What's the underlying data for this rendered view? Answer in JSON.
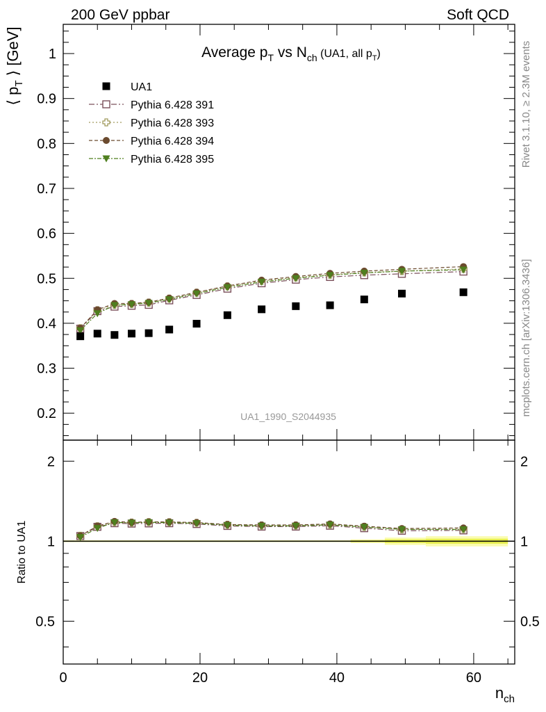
{
  "header": {
    "left": "200 GeV ppbar",
    "right": "Soft QCD"
  },
  "side_text": {
    "rivet": "Rivet 3.1.10, ≥ 2.3M events",
    "mcplots": "mcplots.cern.ch [arXiv:1306.3436]"
  },
  "analysis_id": "UA1_1990_S2044935",
  "chart_data": {
    "type": "scatter",
    "title": "Average pT vs Nch (UA1, all pT)",
    "xlabel": "nch",
    "ylabel": "⟨ pT ⟩ [GeV]",
    "ratio_ylabel": "Ratio to UA1",
    "xlim": [
      0,
      66
    ],
    "ylim": [
      0.14,
      1.065
    ],
    "ratio_ylim": [
      0.345,
      2.4
    ],
    "ratio_log": true,
    "x_ticks": [
      0,
      20,
      40,
      60
    ],
    "y_ticks": [
      0.2,
      0.3,
      0.4,
      0.5,
      0.6,
      0.7,
      0.8,
      0.9,
      1
    ],
    "ratio_ticks": [
      0.5,
      1,
      2
    ],
    "legend_position": "top-left",
    "x": [
      2.5,
      5,
      7.5,
      10,
      12.5,
      15.5,
      19.5,
      24,
      29,
      34,
      39,
      44,
      49.5,
      58.5
    ],
    "data": {
      "name": "UA1",
      "values": [
        0.371,
        0.377,
        0.374,
        0.377,
        0.378,
        0.386,
        0.399,
        0.418,
        0.431,
        0.438,
        0.44,
        0.453,
        0.466,
        0.469
      ]
    },
    "series": [
      {
        "name": "Pythia 6.428 391",
        "color": "#7a4f5a",
        "marker": "open-square",
        "dash": "8,3,2,3",
        "values": [
          0.388,
          0.427,
          0.437,
          0.439,
          0.441,
          0.451,
          0.463,
          0.477,
          0.489,
          0.497,
          0.503,
          0.507,
          0.51,
          0.515
        ]
      },
      {
        "name": "Pythia 6.428 393",
        "color": "#a09a5c",
        "marker": "open-cross",
        "dash": "2,3",
        "values": [
          0.389,
          0.429,
          0.441,
          0.443,
          0.446,
          0.455,
          0.468,
          0.482,
          0.494,
          0.502,
          0.508,
          0.513,
          0.516,
          0.521
        ]
      },
      {
        "name": "Pythia 6.428 394",
        "color": "#6b4a2e",
        "marker": "filled-circle",
        "dash": "5,3",
        "values": [
          0.389,
          0.43,
          0.444,
          0.444,
          0.447,
          0.456,
          0.469,
          0.483,
          0.496,
          0.504,
          0.511,
          0.516,
          0.52,
          0.526
        ]
      },
      {
        "name": "Pythia 6.428 395",
        "color": "#4f7f1f",
        "marker": "filled-triangle-down",
        "dash": "6,2,2,2",
        "values": [
          0.384,
          0.422,
          0.44,
          0.442,
          0.445,
          0.453,
          0.466,
          0.48,
          0.492,
          0.5,
          0.507,
          0.512,
          0.516,
          0.519
        ]
      }
    ],
    "ratio_band_inner_color": "#e8f050",
    "ratio_band_outer_color": "#fafcb0",
    "ratio_band_edges": [
      [
        0,
        27,
        0.004
      ],
      [
        27,
        42,
        0.004
      ],
      [
        42,
        47,
        0.008
      ],
      [
        47,
        53,
        0.016
      ],
      [
        53,
        65,
        0.022
      ]
    ]
  }
}
